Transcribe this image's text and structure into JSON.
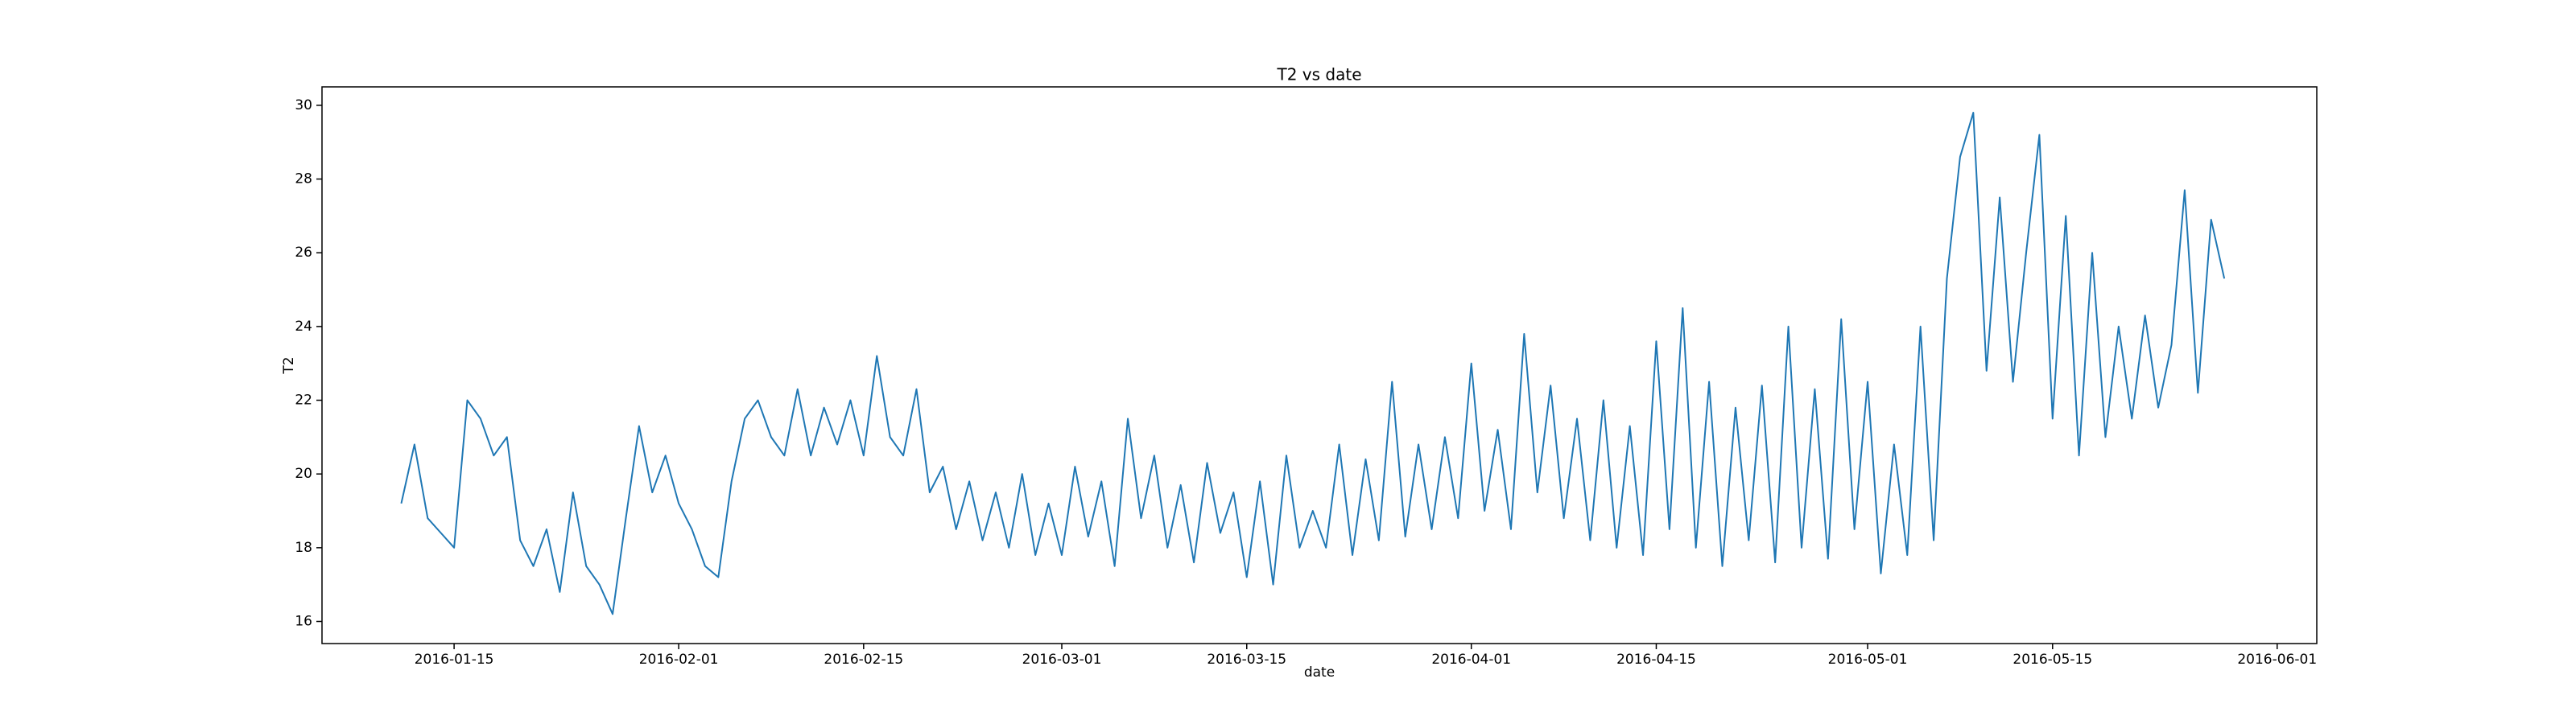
{
  "chart_data": {
    "type": "line",
    "title": "T2 vs date",
    "xlabel": "date",
    "ylabel": "T2",
    "color": "#1f77b4",
    "x": [
      "2016-01-11",
      "2016-01-12",
      "2016-01-13",
      "2016-01-14",
      "2016-01-15",
      "2016-01-16",
      "2016-01-17",
      "2016-01-18",
      "2016-01-19",
      "2016-01-20",
      "2016-01-21",
      "2016-01-22",
      "2016-01-23",
      "2016-01-24",
      "2016-01-25",
      "2016-01-26",
      "2016-01-27",
      "2016-01-28",
      "2016-01-29",
      "2016-01-30",
      "2016-01-31",
      "2016-02-01",
      "2016-02-02",
      "2016-02-03",
      "2016-02-04",
      "2016-02-05",
      "2016-02-06",
      "2016-02-07",
      "2016-02-08",
      "2016-02-09",
      "2016-02-10",
      "2016-02-11",
      "2016-02-12",
      "2016-02-13",
      "2016-02-14",
      "2016-02-15",
      "2016-02-16",
      "2016-02-17",
      "2016-02-18",
      "2016-02-19",
      "2016-02-20",
      "2016-02-21",
      "2016-02-22",
      "2016-02-23",
      "2016-02-24",
      "2016-02-25",
      "2016-02-26",
      "2016-02-27",
      "2016-02-28",
      "2016-02-29",
      "2016-03-01",
      "2016-03-02",
      "2016-03-03",
      "2016-03-04",
      "2016-03-05",
      "2016-03-06",
      "2016-03-07",
      "2016-03-08",
      "2016-03-09",
      "2016-03-10",
      "2016-03-11",
      "2016-03-12",
      "2016-03-13",
      "2016-03-14",
      "2016-03-15",
      "2016-03-16",
      "2016-03-17",
      "2016-03-18",
      "2016-03-19",
      "2016-03-20",
      "2016-03-21",
      "2016-03-22",
      "2016-03-23",
      "2016-03-24",
      "2016-03-25",
      "2016-03-26",
      "2016-03-27",
      "2016-03-28",
      "2016-03-29",
      "2016-03-30",
      "2016-03-31",
      "2016-04-01",
      "2016-04-02",
      "2016-04-03",
      "2016-04-04",
      "2016-04-05",
      "2016-04-06",
      "2016-04-07",
      "2016-04-08",
      "2016-04-09",
      "2016-04-10",
      "2016-04-11",
      "2016-04-12",
      "2016-04-13",
      "2016-04-14",
      "2016-04-15",
      "2016-04-16",
      "2016-04-17",
      "2016-04-18",
      "2016-04-19",
      "2016-04-20",
      "2016-04-21",
      "2016-04-22",
      "2016-04-23",
      "2016-04-24",
      "2016-04-25",
      "2016-04-26",
      "2016-04-27",
      "2016-04-28",
      "2016-04-29",
      "2016-04-30",
      "2016-05-01",
      "2016-05-02",
      "2016-05-03",
      "2016-05-04",
      "2016-05-05",
      "2016-05-06",
      "2016-05-07",
      "2016-05-08",
      "2016-05-09",
      "2016-05-10",
      "2016-05-11",
      "2016-05-12",
      "2016-05-13",
      "2016-05-14",
      "2016-05-15",
      "2016-05-16",
      "2016-05-17",
      "2016-05-18",
      "2016-05-19",
      "2016-05-20",
      "2016-05-21",
      "2016-05-22",
      "2016-05-23",
      "2016-05-24",
      "2016-05-25",
      "2016-05-26",
      "2016-05-27",
      "2016-05-28"
    ],
    "values": [
      19.2,
      20.8,
      18.8,
      18.4,
      18.0,
      22.0,
      21.5,
      20.5,
      21.0,
      18.2,
      17.5,
      18.5,
      16.8,
      19.5,
      17.5,
      17.0,
      16.2,
      18.8,
      21.3,
      19.5,
      20.5,
      19.2,
      18.5,
      17.5,
      17.2,
      19.8,
      21.5,
      22.0,
      21.0,
      20.5,
      22.3,
      20.5,
      21.8,
      20.8,
      22.0,
      20.5,
      23.2,
      21.0,
      20.5,
      22.3,
      19.5,
      20.2,
      18.5,
      19.8,
      18.2,
      19.5,
      18.0,
      20.0,
      17.8,
      19.2,
      17.8,
      20.2,
      18.3,
      19.8,
      17.5,
      21.5,
      18.8,
      20.5,
      18.0,
      19.7,
      17.6,
      20.3,
      18.4,
      19.5,
      17.2,
      19.8,
      17.0,
      20.5,
      18.0,
      19.0,
      18.0,
      20.8,
      17.8,
      20.4,
      18.2,
      22.5,
      18.3,
      20.8,
      18.5,
      21.0,
      18.8,
      23.0,
      19.0,
      21.2,
      18.5,
      23.8,
      19.5,
      22.4,
      18.8,
      21.5,
      18.2,
      22.0,
      18.0,
      21.3,
      17.8,
      23.6,
      18.5,
      24.5,
      18.0,
      22.5,
      17.5,
      21.8,
      18.2,
      22.4,
      17.6,
      24.0,
      18.0,
      22.3,
      17.7,
      24.2,
      18.5,
      22.5,
      17.3,
      20.8,
      17.8,
      24.0,
      18.2,
      25.3,
      28.6,
      29.8,
      22.8,
      27.5,
      22.5,
      26.0,
      29.2,
      21.5,
      27.0,
      20.5,
      26.0,
      21.0,
      24.0,
      21.5,
      24.3,
      21.8,
      23.5,
      27.7,
      22.2,
      26.9,
      25.3
    ],
    "xlim": [
      "2016-01-05",
      "2016-06-04"
    ],
    "xticks": [
      "2016-01-15",
      "2016-02-01",
      "2016-02-15",
      "2016-03-01",
      "2016-03-15",
      "2016-04-01",
      "2016-04-15",
      "2016-05-01",
      "2016-05-15",
      "2016-06-01"
    ],
    "ylim": [
      15.4,
      30.5
    ],
    "yticks": [
      16,
      18,
      20,
      22,
      24,
      26,
      28,
      30
    ]
  }
}
